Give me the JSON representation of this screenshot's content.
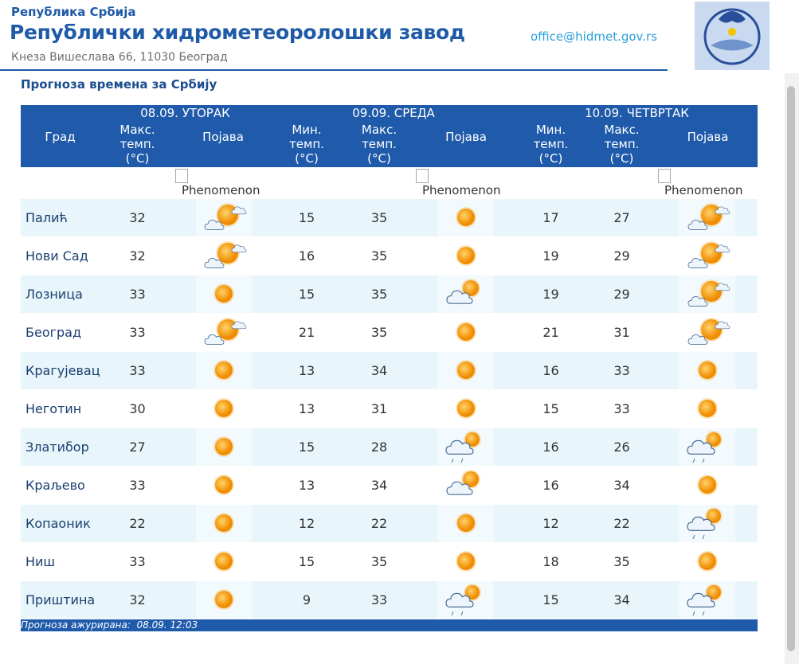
{
  "header": {
    "republic": "Република Србија",
    "title": "Републички хидрометеоролошки завод",
    "address": "Кнеза Вишеслава 66, 11030 Београд",
    "email": "office@hidmet.gov.rs"
  },
  "section_title": "Прогноза времена за Србију",
  "table": {
    "days": [
      "08.09. УТОРАК",
      "09.09. СРЕДА",
      "10.09. ЧЕТВРТАК"
    ],
    "columns": [
      "Град",
      "Макс. темп. (°C)",
      "Појава",
      "Мин. темп. (°C)",
      "Макс. темп. (°C)",
      "Појава",
      "Мин. темп. (°C)",
      "Макс. темп. (°C)",
      "Појава"
    ],
    "image_alts": [
      "Phenomenon",
      "Phenomenon",
      "Phenomenon"
    ],
    "rows": [
      [
        "Палић",
        32,
        15,
        35,
        17,
        27
      ],
      [
        "Нови Сад",
        32,
        16,
        35,
        19,
        29
      ],
      [
        "Лозница",
        33,
        15,
        35,
        19,
        29
      ],
      [
        "Београд",
        33,
        21,
        35,
        21,
        31
      ],
      [
        "Крагујевац",
        33,
        13,
        34,
        16,
        33
      ],
      [
        "Неготин",
        30,
        13,
        31,
        15,
        33
      ],
      [
        "Златибор",
        27,
        15,
        28,
        16,
        26
      ],
      [
        "Краљево",
        33,
        13,
        34,
        16,
        34
      ],
      [
        "Копаоник",
        22,
        12,
        22,
        12,
        22
      ],
      [
        "Ниш",
        33,
        15,
        35,
        18,
        35
      ],
      [
        "Приштина",
        32,
        9,
        33,
        15,
        34
      ]
    ]
  },
  "footer": {
    "label": "Прогноза ажурирана:",
    "time": "08.09. 12:03"
  }
}
